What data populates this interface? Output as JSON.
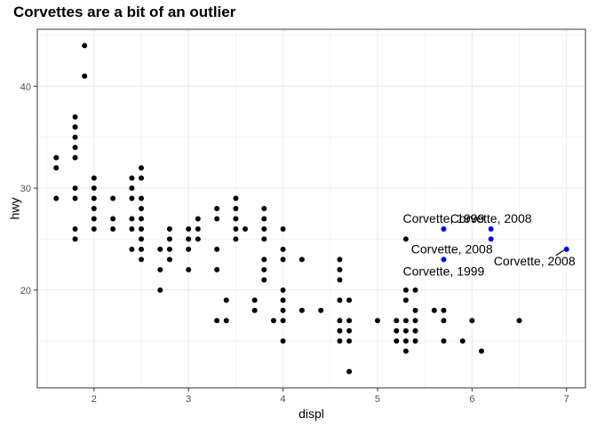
{
  "chart_data": {
    "type": "scatter",
    "title": "Corvettes are a bit of an outlier",
    "xlabel": "displ",
    "ylabel": "hwy",
    "xlim": [
      1.4,
      7.2
    ],
    "ylim": [
      10.4,
      45.6
    ],
    "x_ticks": [
      2,
      3,
      4,
      5,
      6,
      7
    ],
    "y_ticks": [
      20,
      30,
      40
    ],
    "grid": true,
    "point_color": "#000000",
    "highlight_color": "#0000ff",
    "series": [
      {
        "points": [
          [
            1.6,
            33
          ],
          [
            1.6,
            32
          ],
          [
            1.6,
            29
          ],
          [
            1.8,
            37
          ],
          [
            1.8,
            36
          ],
          [
            1.8,
            35
          ],
          [
            1.8,
            34
          ],
          [
            1.8,
            33
          ],
          [
            1.8,
            30
          ],
          [
            1.8,
            29
          ],
          [
            1.8,
            26
          ],
          [
            1.8,
            25
          ],
          [
            1.9,
            44
          ],
          [
            1.9,
            41
          ],
          [
            2.0,
            31
          ],
          [
            2.0,
            30
          ],
          [
            2.0,
            29
          ],
          [
            2.0,
            28
          ],
          [
            2.0,
            27
          ],
          [
            2.0,
            26
          ],
          [
            2.2,
            29
          ],
          [
            2.2,
            27
          ],
          [
            2.2,
            26
          ],
          [
            2.4,
            31
          ],
          [
            2.4,
            30
          ],
          [
            2.4,
            29
          ],
          [
            2.4,
            27
          ],
          [
            2.4,
            26
          ],
          [
            2.4,
            24
          ],
          [
            2.5,
            32
          ],
          [
            2.5,
            31
          ],
          [
            2.5,
            29
          ],
          [
            2.5,
            28
          ],
          [
            2.5,
            27
          ],
          [
            2.5,
            26
          ],
          [
            2.5,
            25
          ],
          [
            2.5,
            24
          ],
          [
            2.5,
            23
          ],
          [
            2.7,
            24
          ],
          [
            2.7,
            22
          ],
          [
            2.7,
            20
          ],
          [
            2.8,
            26
          ],
          [
            2.8,
            25
          ],
          [
            2.8,
            24
          ],
          [
            2.8,
            23
          ],
          [
            3.0,
            26
          ],
          [
            3.0,
            25
          ],
          [
            3.0,
            24
          ],
          [
            3.0,
            22
          ],
          [
            3.1,
            27
          ],
          [
            3.1,
            26
          ],
          [
            3.1,
            25
          ],
          [
            3.3,
            28
          ],
          [
            3.3,
            27
          ],
          [
            3.3,
            24
          ],
          [
            3.3,
            22
          ],
          [
            3.3,
            17
          ],
          [
            3.4,
            19
          ],
          [
            3.4,
            17
          ],
          [
            3.5,
            29
          ],
          [
            3.5,
            28
          ],
          [
            3.5,
            27
          ],
          [
            3.5,
            26
          ],
          [
            3.5,
            25
          ],
          [
            3.6,
            26
          ],
          [
            3.7,
            19
          ],
          [
            3.7,
            18
          ],
          [
            3.8,
            28
          ],
          [
            3.8,
            27
          ],
          [
            3.8,
            26
          ],
          [
            3.8,
            25
          ],
          [
            3.8,
            23
          ],
          [
            3.8,
            22
          ],
          [
            3.8,
            21
          ],
          [
            3.9,
            17
          ],
          [
            4.0,
            26
          ],
          [
            4.0,
            24
          ],
          [
            4.0,
            23
          ],
          [
            4.0,
            20
          ],
          [
            4.0,
            19
          ],
          [
            4.0,
            18
          ],
          [
            4.0,
            17
          ],
          [
            4.0,
            15
          ],
          [
            4.2,
            23
          ],
          [
            4.2,
            18
          ],
          [
            4.4,
            18
          ],
          [
            4.6,
            23
          ],
          [
            4.6,
            22
          ],
          [
            4.6,
            21
          ],
          [
            4.6,
            19
          ],
          [
            4.6,
            17
          ],
          [
            4.6,
            16
          ],
          [
            4.6,
            15
          ],
          [
            4.7,
            19
          ],
          [
            4.7,
            17
          ],
          [
            4.7,
            16
          ],
          [
            4.7,
            15
          ],
          [
            4.7,
            12
          ],
          [
            5.0,
            17
          ],
          [
            5.2,
            17
          ],
          [
            5.2,
            16
          ],
          [
            5.2,
            15
          ],
          [
            5.3,
            25
          ],
          [
            5.3,
            20
          ],
          [
            5.3,
            19
          ],
          [
            5.3,
            17
          ],
          [
            5.3,
            16
          ],
          [
            5.3,
            15
          ],
          [
            5.3,
            14
          ],
          [
            5.4,
            20
          ],
          [
            5.4,
            18
          ],
          [
            5.4,
            17
          ],
          [
            5.4,
            16
          ],
          [
            5.4,
            15
          ],
          [
            5.6,
            18
          ],
          [
            5.7,
            18
          ],
          [
            5.7,
            17
          ],
          [
            5.7,
            15
          ],
          [
            5.9,
            15
          ],
          [
            6.0,
            17
          ],
          [
            6.1,
            14
          ],
          [
            6.5,
            17
          ]
        ]
      },
      {
        "points": [
          [
            5.7,
            26
          ],
          [
            5.7,
            23
          ],
          [
            6.2,
            26
          ],
          [
            6.2,
            25
          ],
          [
            7.0,
            24
          ]
        ]
      }
    ],
    "annotations": [
      {
        "text": "Corvette, 1999",
        "x": 5.7,
        "y": 26
      },
      {
        "text": "Corvette, 1999",
        "x": 5.7,
        "y": 23
      },
      {
        "text": "Corvette, 2008",
        "x": 6.2,
        "y": 26
      },
      {
        "text": "Corvette, 2008",
        "x": 6.2,
        "y": 25
      },
      {
        "text": "Corvette, 2008",
        "x": 7.0,
        "y": 24
      }
    ]
  }
}
